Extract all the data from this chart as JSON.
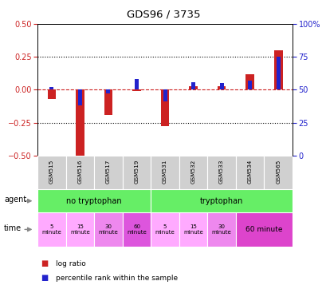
{
  "title": "GDS96 / 3735",
  "samples": [
    "GSM515",
    "GSM516",
    "GSM517",
    "GSM519",
    "GSM531",
    "GSM532",
    "GSM533",
    "GSM534",
    "GSM565"
  ],
  "log_ratio": [
    -0.07,
    -0.52,
    -0.19,
    -0.01,
    -0.28,
    0.03,
    0.03,
    0.12,
    0.3
  ],
  "percentile_rank": [
    52,
    38,
    47,
    58,
    41,
    56,
    55,
    57,
    75
  ],
  "ylim_left": [
    -0.5,
    0.5
  ],
  "ylim_right": [
    0,
    100
  ],
  "yticks_left": [
    -0.5,
    -0.25,
    0.0,
    0.25,
    0.5
  ],
  "yticks_right": [
    0,
    25,
    50,
    75,
    100
  ],
  "bar_color_red": "#cc2222",
  "bar_color_blue": "#2222cc",
  "axis_left_color": "#cc2222",
  "axis_right_color": "#2222cc",
  "dashed_line_color": "#cc2222",
  "sample_box_color": "#d0d0d0",
  "agent_green": "#66ee66",
  "time_colors": [
    "#ffaaff",
    "#ffaaff",
    "#ee88ee",
    "#dd55dd",
    "#ffaaff",
    "#ffaaff",
    "#ee88ee",
    "#dd44cc"
  ],
  "legend_red": "log ratio",
  "legend_blue": "percentile rank within the sample"
}
